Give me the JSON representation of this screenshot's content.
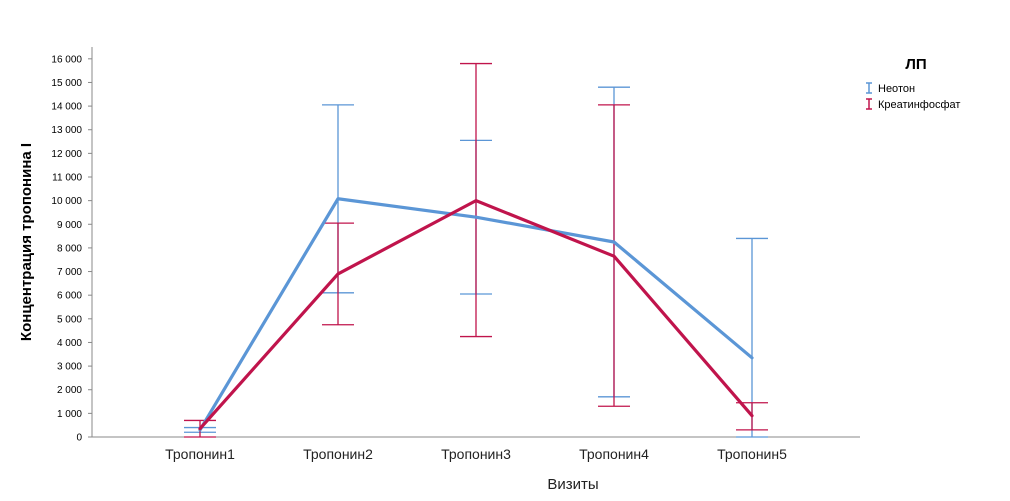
{
  "chart_data": {
    "type": "line",
    "title": "",
    "xlabel": "Визиты",
    "ylabel": "Концентрация тропонина I",
    "categories": [
      "Тропонин1",
      "Тропонин2",
      "Тропонин3",
      "Тропонин4",
      "Тропонин5"
    ],
    "ylim": [
      0,
      16500
    ],
    "yticks": [
      0,
      1000,
      2000,
      3000,
      4000,
      5000,
      6000,
      7000,
      8000,
      9000,
      10000,
      11000,
      12000,
      13000,
      14000,
      15000,
      16000
    ],
    "ytick_labels": [
      "0",
      "1 000",
      "2 000",
      "3 000",
      "4 000",
      "5 000",
      "6 000",
      "7 000",
      "8 000",
      "9 000",
      "10 000",
      "11 000",
      "12 000",
      "13 000",
      "14 000",
      "15 000",
      "16 000"
    ],
    "grid": false,
    "legend": {
      "title": "ЛП",
      "position": "top-right"
    },
    "series": [
      {
        "name": "Неотон",
        "color": "#5b96d6",
        "values": [
          300,
          10080,
          9300,
          8250,
          3350
        ],
        "error_low": [
          200,
          6100,
          6050,
          1700,
          0
        ],
        "error_high": [
          400,
          14050,
          12550,
          14800,
          8400
        ]
      },
      {
        "name": "Креатинфосфат",
        "color": "#c0144c",
        "values": [
          350,
          6900,
          10000,
          7650,
          900
        ],
        "error_low": [
          0,
          4750,
          4250,
          1300,
          300
        ],
        "error_high": [
          700,
          9050,
          15800,
          14050,
          1450
        ]
      }
    ]
  }
}
